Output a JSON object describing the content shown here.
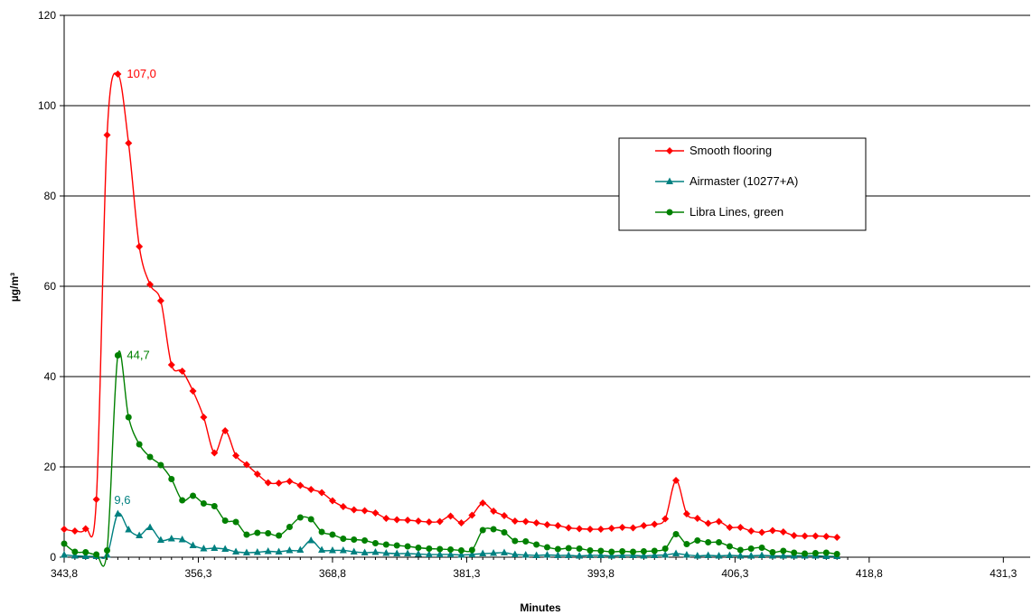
{
  "chart_data": {
    "type": "line",
    "title": "",
    "xlabel": "Minutes",
    "ylabel": "µg/m³",
    "ylim": [
      0,
      120
    ],
    "yticks": [
      0,
      20,
      40,
      60,
      80,
      100,
      120
    ],
    "xlim": [
      343.8,
      433.8
    ],
    "xticks": [
      343.8,
      356.3,
      368.8,
      381.3,
      393.8,
      406.3,
      418.8,
      431.3
    ],
    "xtick_labels": [
      "343,8",
      "356,3",
      "368,8",
      "381,3",
      "393,8",
      "406,3",
      "418,8",
      "431,3"
    ],
    "grid": "horizontal",
    "legend": "upper-right",
    "x_start": 343.8,
    "x_step": 1.0,
    "series": [
      {
        "name": "Smooth flooring",
        "color": "#ff0000",
        "marker": "diamond",
        "values": [
          6.2,
          5.8,
          6.3,
          12.8,
          93.5,
          107.0,
          91.7,
          68.8,
          60.4,
          56.8,
          42.6,
          41.2,
          36.8,
          31.0,
          23.1,
          28.0,
          22.5,
          20.5,
          18.4,
          16.5,
          16.4,
          16.8,
          15.9,
          15.0,
          14.3,
          12.5,
          11.2,
          10.5,
          10.3,
          9.8,
          8.6,
          8.3,
          8.2,
          8.0,
          7.8,
          7.9,
          9.1,
          7.6,
          9.3,
          12.0,
          10.2,
          9.2,
          8.0,
          7.9,
          7.6,
          7.2,
          7.0,
          6.5,
          6.3,
          6.2,
          6.2,
          6.4,
          6.6,
          6.5,
          7.0,
          7.3,
          8.5,
          17.0,
          9.6,
          8.6,
          7.5,
          7.9,
          6.6,
          6.6,
          5.8,
          5.5,
          5.9,
          5.6,
          4.8,
          4.7,
          4.7,
          4.6,
          4.4
        ]
      },
      {
        "name": "Airmaster (10277+A)",
        "color": "#008080",
        "marker": "triangle",
        "values": [
          0.5,
          0.3,
          0.2,
          0.2,
          0.5,
          9.6,
          6.1,
          4.8,
          6.6,
          3.8,
          4.1,
          3.9,
          2.6,
          1.9,
          2.0,
          1.8,
          1.2,
          1.0,
          1.1,
          1.3,
          1.2,
          1.5,
          1.6,
          3.7,
          1.6,
          1.5,
          1.5,
          1.2,
          1.0,
          1.1,
          0.9,
          0.8,
          0.8,
          0.7,
          0.6,
          0.6,
          0.6,
          0.5,
          0.6,
          0.8,
          0.9,
          1.0,
          0.6,
          0.5,
          0.4,
          0.5,
          0.4,
          0.4,
          0.3,
          0.4,
          0.4,
          0.3,
          0.4,
          0.4,
          0.3,
          0.4,
          0.5,
          0.8,
          0.5,
          0.3,
          0.4,
          0.3,
          0.4,
          0.3,
          0.3,
          0.4,
          0.3,
          0.3,
          0.3,
          0.3,
          0.3,
          0.2,
          0.2
        ]
      },
      {
        "name": "Libra Lines, green",
        "color": "#008000",
        "marker": "circle",
        "values": [
          3.0,
          1.2,
          1.1,
          0.6,
          1.5,
          44.7,
          31.0,
          25.0,
          22.2,
          20.4,
          17.3,
          12.6,
          13.6,
          11.9,
          11.3,
          8.1,
          7.8,
          5.0,
          5.4,
          5.3,
          4.8,
          6.7,
          8.8,
          8.4,
          5.6,
          5.0,
          4.1,
          3.9,
          3.7,
          3.1,
          2.8,
          2.6,
          2.4,
          2.1,
          1.9,
          1.8,
          1.7,
          1.5,
          1.6,
          6.0,
          6.2,
          5.5,
          3.6,
          3.5,
          2.8,
          2.2,
          1.8,
          2.0,
          1.9,
          1.5,
          1.4,
          1.2,
          1.3,
          1.2,
          1.3,
          1.4,
          1.9,
          5.1,
          2.9,
          3.7,
          3.3,
          3.3,
          2.4,
          1.6,
          1.9,
          2.1,
          1.1,
          1.4,
          1.0,
          0.8,
          0.9,
          1.0,
          0.7
        ]
      }
    ],
    "annotations": [
      {
        "text": "107,0",
        "series": 0,
        "index": 5
      },
      {
        "text": "44,7",
        "series": 2,
        "index": 5
      },
      {
        "text": "9,6",
        "series": 1,
        "index": 5
      }
    ]
  }
}
